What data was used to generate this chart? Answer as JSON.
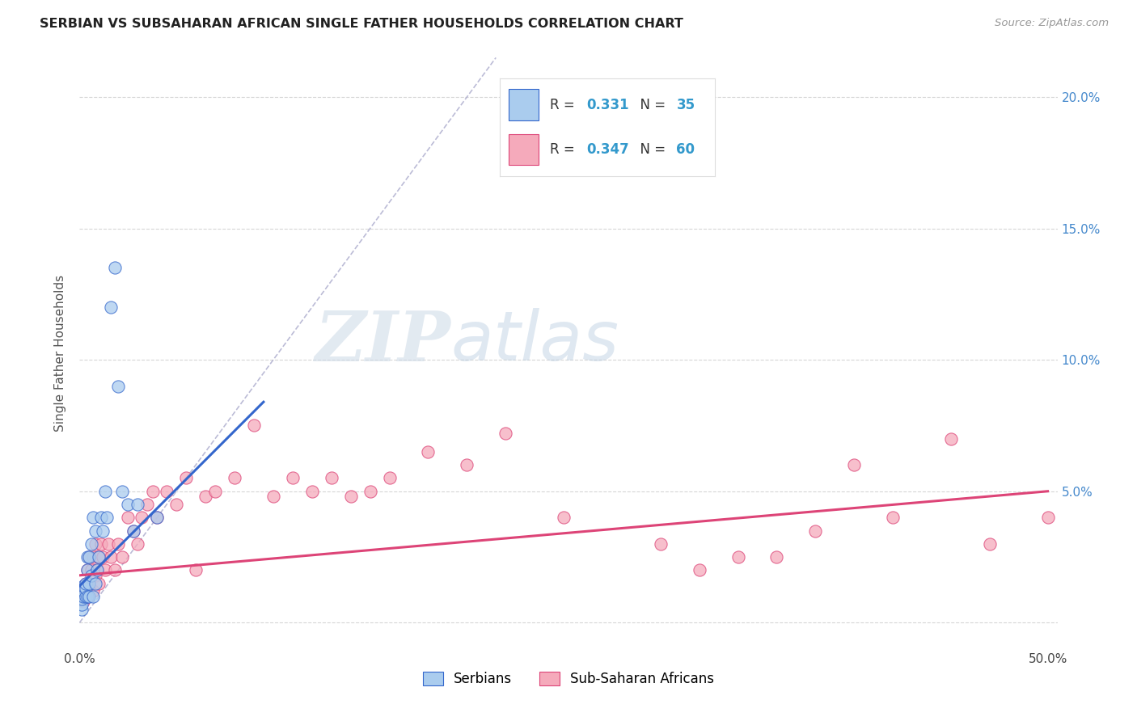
{
  "title": "SERBIAN VS SUBSAHARAN AFRICAN SINGLE FATHER HOUSEHOLDS CORRELATION CHART",
  "source": "Source: ZipAtlas.com",
  "ylabel": "Single Father Households",
  "serbian_color": "#aaccee",
  "subsaharan_color": "#f5aabb",
  "trend_serbian_color": "#3366cc",
  "trend_subsaharan_color": "#dd4477",
  "diagonal_color": "#aaaacc",
  "watermark_zip": "ZIP",
  "watermark_atlas": "atlas",
  "watermark_zip_color": "#c8d8e8",
  "watermark_atlas_color": "#aabbdd",
  "serbian_x": [
    0.001,
    0.001,
    0.001,
    0.002,
    0.002,
    0.002,
    0.003,
    0.003,
    0.003,
    0.004,
    0.004,
    0.004,
    0.005,
    0.005,
    0.005,
    0.006,
    0.006,
    0.007,
    0.007,
    0.008,
    0.008,
    0.009,
    0.01,
    0.011,
    0.012,
    0.013,
    0.014,
    0.016,
    0.018,
    0.02,
    0.022,
    0.025,
    0.028,
    0.03,
    0.04
  ],
  "serbian_y": [
    0.005,
    0.007,
    0.009,
    0.01,
    0.012,
    0.014,
    0.01,
    0.013,
    0.015,
    0.01,
    0.02,
    0.025,
    0.01,
    0.015,
    0.025,
    0.018,
    0.03,
    0.01,
    0.04,
    0.015,
    0.035,
    0.02,
    0.025,
    0.04,
    0.035,
    0.05,
    0.04,
    0.12,
    0.135,
    0.09,
    0.05,
    0.045,
    0.035,
    0.045,
    0.04
  ],
  "subsaharan_x": [
    0.001,
    0.002,
    0.003,
    0.003,
    0.004,
    0.004,
    0.005,
    0.005,
    0.006,
    0.007,
    0.007,
    0.008,
    0.008,
    0.009,
    0.01,
    0.01,
    0.011,
    0.012,
    0.013,
    0.015,
    0.016,
    0.018,
    0.02,
    0.022,
    0.025,
    0.028,
    0.03,
    0.032,
    0.035,
    0.038,
    0.04,
    0.045,
    0.05,
    0.055,
    0.06,
    0.065,
    0.07,
    0.08,
    0.09,
    0.1,
    0.11,
    0.12,
    0.13,
    0.14,
    0.15,
    0.16,
    0.18,
    0.2,
    0.22,
    0.25,
    0.3,
    0.32,
    0.34,
    0.36,
    0.38,
    0.4,
    0.42,
    0.45,
    0.47,
    0.5
  ],
  "subsaharan_y": [
    0.01,
    0.008,
    0.012,
    0.015,
    0.01,
    0.02,
    0.015,
    0.025,
    0.02,
    0.012,
    0.025,
    0.018,
    0.03,
    0.02,
    0.015,
    0.025,
    0.03,
    0.025,
    0.02,
    0.03,
    0.025,
    0.02,
    0.03,
    0.025,
    0.04,
    0.035,
    0.03,
    0.04,
    0.045,
    0.05,
    0.04,
    0.05,
    0.045,
    0.055,
    0.02,
    0.048,
    0.05,
    0.055,
    0.075,
    0.048,
    0.055,
    0.05,
    0.055,
    0.048,
    0.05,
    0.055,
    0.065,
    0.06,
    0.072,
    0.04,
    0.03,
    0.02,
    0.025,
    0.025,
    0.035,
    0.06,
    0.04,
    0.07,
    0.03,
    0.04
  ],
  "trend_serbian_x0": 0.0,
  "trend_serbian_x1": 0.095,
  "trend_serbian_y0": 0.014,
  "trend_serbian_y1": 0.084,
  "trend_subsaharan_x0": 0.0,
  "trend_subsaharan_x1": 0.5,
  "trend_subsaharan_y0": 0.018,
  "trend_subsaharan_y1": 0.05,
  "xlim": [
    0.0,
    0.505
  ],
  "ylim": [
    -0.01,
    0.215
  ],
  "ytick_right": [
    0.05,
    0.1,
    0.15,
    0.2
  ],
  "ytick_right_labels": [
    "5.0%",
    "10.0%",
    "15.0%",
    "20.0%"
  ]
}
